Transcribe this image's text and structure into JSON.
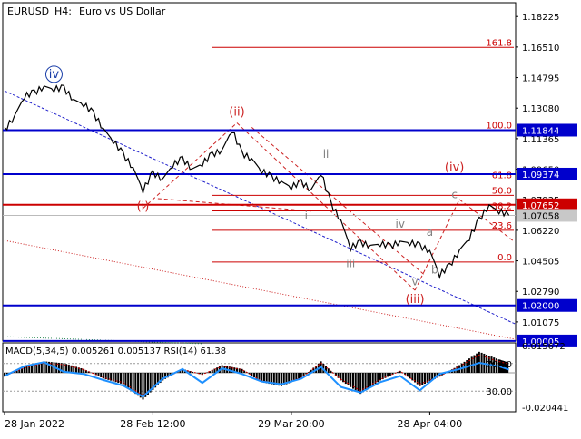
{
  "header": {
    "symbol": "EURUSD",
    "timeframe": "H4:",
    "description": "Euro vs US Dollar"
  },
  "colors": {
    "price": "#000000",
    "level_blue": "#0000cc",
    "fib_red": "#cc0000",
    "trend_blue": "#2222cc",
    "channel_red": "#cc2222",
    "wave_blue": "#1a3ea8",
    "wave_red": "#cc2222",
    "wave_gray": "#808080",
    "macd_hist": "#000000",
    "macd_signal": "#cc0000",
    "rsi_line": "#1e90ff"
  },
  "chart_data": [
    {
      "type": "line",
      "panel": "price",
      "x_tick_labels": [
        "28 Jan 2022",
        "28 Feb 12:00",
        "29 Mar 20:00",
        "28 Apr 04:00"
      ],
      "y_tick_labels": [
        "1.18225",
        "1.16510",
        "1.14795",
        "1.13080",
        "1.11365",
        "1.09650",
        "1.07935",
        "1.06220",
        "1.04505",
        "1.02790",
        "1.01075"
      ],
      "ylim": [
        1.0,
        1.19
      ],
      "series": [
        {
          "x": [
            0,
            2,
            4,
            6,
            8,
            10,
            12,
            14,
            16,
            18,
            20,
            22,
            24,
            26,
            28,
            30,
            32,
            34,
            36,
            38,
            40,
            42,
            44,
            46,
            48,
            50,
            52,
            54,
            56,
            58,
            60,
            62,
            64,
            66,
            68,
            70,
            72,
            74,
            76,
            78,
            80,
            82,
            84,
            86,
            88,
            90,
            92,
            94,
            96,
            98,
            100,
            102
          ],
          "values": [
            1.1185,
            1.1265,
            1.1372,
            1.1396,
            1.1432,
            1.1413,
            1.1421,
            1.1356,
            1.1329,
            1.1278,
            1.1194,
            1.1122,
            1.1048,
            1.0975,
            1.0845,
            1.0945,
            1.0912,
            1.0987,
            1.1023,
            1.0968,
            1.0995,
            1.1048,
            1.1075,
            1.1184,
            1.1055,
            1.1025,
            1.0953,
            1.0921,
            1.0897,
            1.0863,
            1.0893,
            1.0851,
            1.0943,
            1.0772,
            1.0681,
            1.0523,
            1.0553,
            1.0538,
            1.0545,
            1.0532,
            1.0561,
            1.0551,
            1.0535,
            1.0509,
            1.0371,
            1.0422,
            1.0512,
            1.0578,
            1.0682,
            1.0765,
            1.0728,
            1.0706
          ]
        }
      ],
      "levels": {
        "horizontal": [
          "1.11844",
          "1.09374",
          "1.07652",
          "1.07058",
          "1.02000",
          "1.00005"
        ],
        "fibonacci": [
          {
            "ratio": "161.8",
            "price": 1.1649
          },
          {
            "ratio": "100.0",
            "price": 1.1184
          },
          {
            "ratio": "61.8",
            "price": 1.0904
          },
          {
            "ratio": "50.0",
            "price": 1.0818
          },
          {
            "ratio": "38.2",
            "price": 1.0731
          },
          {
            "ratio": "23.6",
            "price": 1.0622
          },
          {
            "ratio": "0.0",
            "price": 1.0444
          }
        ]
      },
      "waves": [
        {
          "label": "iv",
          "x": 10,
          "value": 1.1478,
          "style": "blue-circle"
        },
        {
          "label": "(i)",
          "x": 28,
          "value": 1.0735,
          "style": "red"
        },
        {
          "label": "(ii)",
          "x": 47,
          "value": 1.1265,
          "style": "red"
        },
        {
          "label": "(iii)",
          "x": 83,
          "value": 1.0215,
          "style": "red"
        },
        {
          "label": "(iv)",
          "x": 91,
          "value": 1.0955,
          "style": "red"
        },
        {
          "label": "i",
          "x": 61,
          "value": 1.0683,
          "style": "gray"
        },
        {
          "label": "ii",
          "x": 65,
          "value": 1.1028,
          "style": "gray"
        },
        {
          "label": "iii",
          "x": 70,
          "value": 1.0416,
          "style": "gray"
        },
        {
          "label": "iv",
          "x": 80,
          "value": 1.0638,
          "style": "gray"
        },
        {
          "label": "v",
          "x": 83,
          "value": 1.0314,
          "style": "gray"
        },
        {
          "label": "a",
          "x": 86,
          "value": 1.0592,
          "style": "gray"
        },
        {
          "label": "b",
          "x": 87,
          "value": 1.0379,
          "style": "gray"
        },
        {
          "label": "c",
          "x": 91,
          "value": 1.0802,
          "style": "gray"
        }
      ]
    },
    {
      "type": "line",
      "panel": "indicator",
      "title": "MACD(5,34,5) 0.005261 0.005137 RSI(14) 61.38",
      "y_tick_labels_right": [
        "0.015672",
        "-0.020441"
      ],
      "rsi_levels": [
        "70.00",
        "30.00"
      ],
      "ylim": [
        -0.020441,
        0.015672
      ],
      "series": [
        {
          "name": "MACD",
          "x": [
            0,
            4,
            8,
            12,
            16,
            20,
            24,
            28,
            32,
            36,
            40,
            44,
            48,
            52,
            56,
            60,
            64,
            68,
            72,
            76,
            80,
            84,
            88,
            92,
            96,
            100,
            102
          ],
          "values": [
            -0.002,
            0.003,
            0.006,
            0.005,
            0.002,
            -0.003,
            -0.006,
            -0.014,
            -0.004,
            0.002,
            -0.001,
            0.004,
            0.002,
            -0.005,
            -0.007,
            -0.003,
            0.006,
            -0.004,
            -0.011,
            -0.004,
            0.001,
            -0.007,
            -0.002,
            0.004,
            0.011,
            0.007,
            0.0053
          ]
        },
        {
          "name": "RSI",
          "x": [
            0,
            4,
            8,
            12,
            16,
            20,
            24,
            28,
            32,
            36,
            40,
            44,
            48,
            52,
            56,
            60,
            64,
            68,
            72,
            76,
            80,
            84,
            88,
            92,
            96,
            100,
            102
          ],
          "values": [
            52,
            66,
            72,
            58,
            55,
            46,
            38,
            22,
            48,
            62,
            42,
            63,
            55,
            44,
            40,
            48,
            65,
            36,
            28,
            43,
            52,
            31,
            55,
            62,
            71,
            66,
            61.38
          ]
        }
      ]
    }
  ]
}
